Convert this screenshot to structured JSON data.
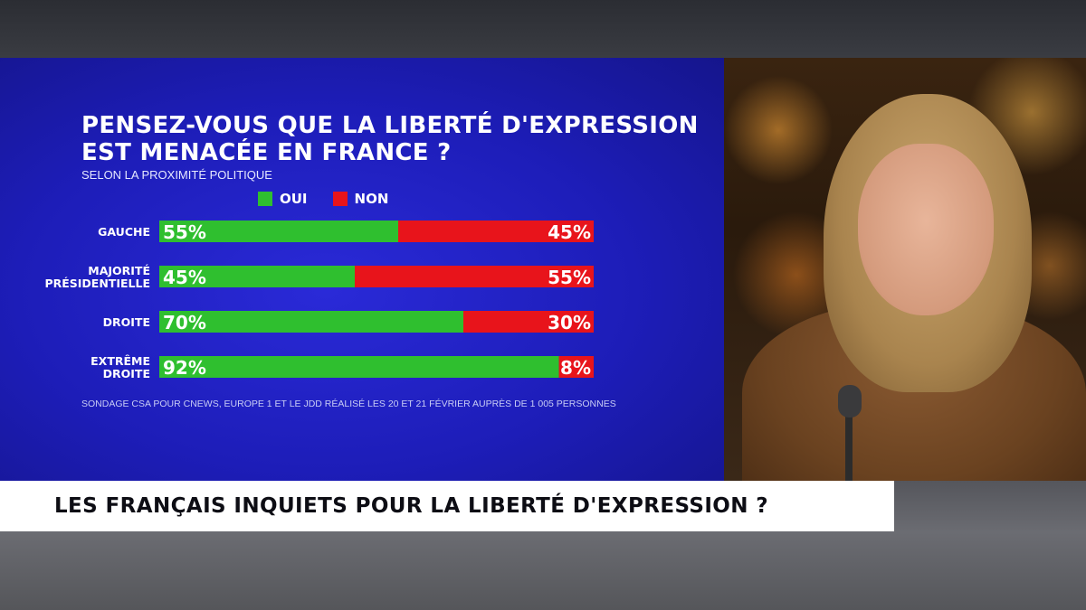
{
  "chart_data": {
    "type": "bar",
    "orientation": "horizontal",
    "stacked": true,
    "title": "PENSEZ-VOUS QUE LA LIBERTÉ D'EXPRESSION EST MENACÉE EN FRANCE ?",
    "subtitle": "SELON LA PROXIMITÉ POLITIQUE",
    "categories": [
      [
        "GAUCHE"
      ],
      [
        "MAJORITÉ",
        "PRÉSIDENTIELLE"
      ],
      [
        "DROITE"
      ],
      [
        "EXTRÊME",
        "DROITE"
      ]
    ],
    "series": [
      {
        "name": "OUI",
        "color": "#2fbf2f",
        "values": [
          55,
          45,
          70,
          92
        ],
        "labels": [
          "55%",
          "45%",
          "70%",
          "92%"
        ]
      },
      {
        "name": "NON",
        "color": "#e8141b",
        "values": [
          45,
          55,
          30,
          8
        ],
        "labels": [
          "45%",
          "55%",
          "30%",
          "8%"
        ]
      }
    ],
    "xlim": [
      0,
      100
    ],
    "legend_position": "top",
    "grid": false,
    "source": "SONDAGE CSA POUR CNEWS, EUROPE 1 ET LE JDD RÉALISÉ LES 20 ET 21 FÉVRIER AUPRÈS DE 1 005 PERSONNES"
  },
  "ticker": {
    "headline": "LES FRANÇAIS INQUIETS POUR LA LIBERTÉ D'EXPRESSION ?"
  },
  "colors": {
    "panel_blue": "#1f1fc4",
    "yes_green": "#2fbf2f",
    "no_red": "#e8141b"
  }
}
